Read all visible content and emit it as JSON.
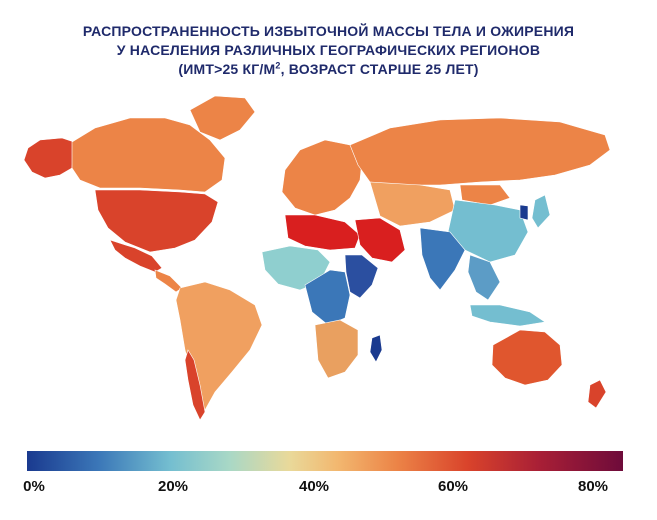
{
  "title": {
    "line1": "РАСПРОСТРАНЕННОСТЬ ИЗБЫТОЧНОЙ МАССЫ ТЕЛА И ОЖИРЕНИЯ",
    "line2": "У НАСЕЛЕНИЯ РАЗЛИЧНЫХ ГЕОГРАФИЧЕСКИХ РЕГИОНОВ",
    "line3_pre": "(ИМТ>25 КГ/М",
    "line3_sup": "2",
    "line3_post": ",  ВОЗРАСТ СТАРШЕ 25 ЛЕТ)"
  },
  "legend": {
    "ticks": [
      "0%",
      "20%",
      "40%",
      "60%",
      "80%"
    ],
    "scale_min": 0,
    "scale_max": 80,
    "colors": [
      "#1a3a8f",
      "#3b77b8",
      "#74bed0",
      "#e9d99a",
      "#ec8447",
      "#d9432b",
      "#6e0b3a"
    ]
  },
  "regions": [
    {
      "name": "alaska",
      "color": "#d9432b"
    },
    {
      "name": "canada",
      "color": "#ec8447"
    },
    {
      "name": "greenland",
      "color": "#ec8447"
    },
    {
      "name": "usa",
      "color": "#d9432b"
    },
    {
      "name": "mexico",
      "color": "#d9432b"
    },
    {
      "name": "central-america",
      "color": "#ec8447"
    },
    {
      "name": "south-america",
      "color": "#f0a060"
    },
    {
      "name": "chile",
      "color": "#d9432b"
    },
    {
      "name": "europe",
      "color": "#ec8447"
    },
    {
      "name": "russia",
      "color": "#ec8447"
    },
    {
      "name": "north-africa",
      "color": "#d91f1f"
    },
    {
      "name": "middle-east",
      "color": "#d91f1f"
    },
    {
      "name": "west-africa",
      "color": "#8fcfcf"
    },
    {
      "name": "central-africa",
      "color": "#3b77b8"
    },
    {
      "name": "east-africa",
      "color": "#2b4fa0"
    },
    {
      "name": "southern-africa",
      "color": "#e9a060"
    },
    {
      "name": "madagascar",
      "color": "#1a3a8f"
    },
    {
      "name": "central-asia",
      "color": "#f0a060"
    },
    {
      "name": "india",
      "color": "#3b77b8"
    },
    {
      "name": "china",
      "color": "#74bed0"
    },
    {
      "name": "mongolia",
      "color": "#ec8447"
    },
    {
      "name": "korea",
      "color": "#1a3a8f"
    },
    {
      "name": "japan",
      "color": "#74bed0"
    },
    {
      "name": "southeast-asia",
      "color": "#5c9cc6"
    },
    {
      "name": "indonesia",
      "color": "#74bed0"
    },
    {
      "name": "australia",
      "color": "#e0562e"
    },
    {
      "name": "new-zealand",
      "color": "#d9432b"
    }
  ]
}
